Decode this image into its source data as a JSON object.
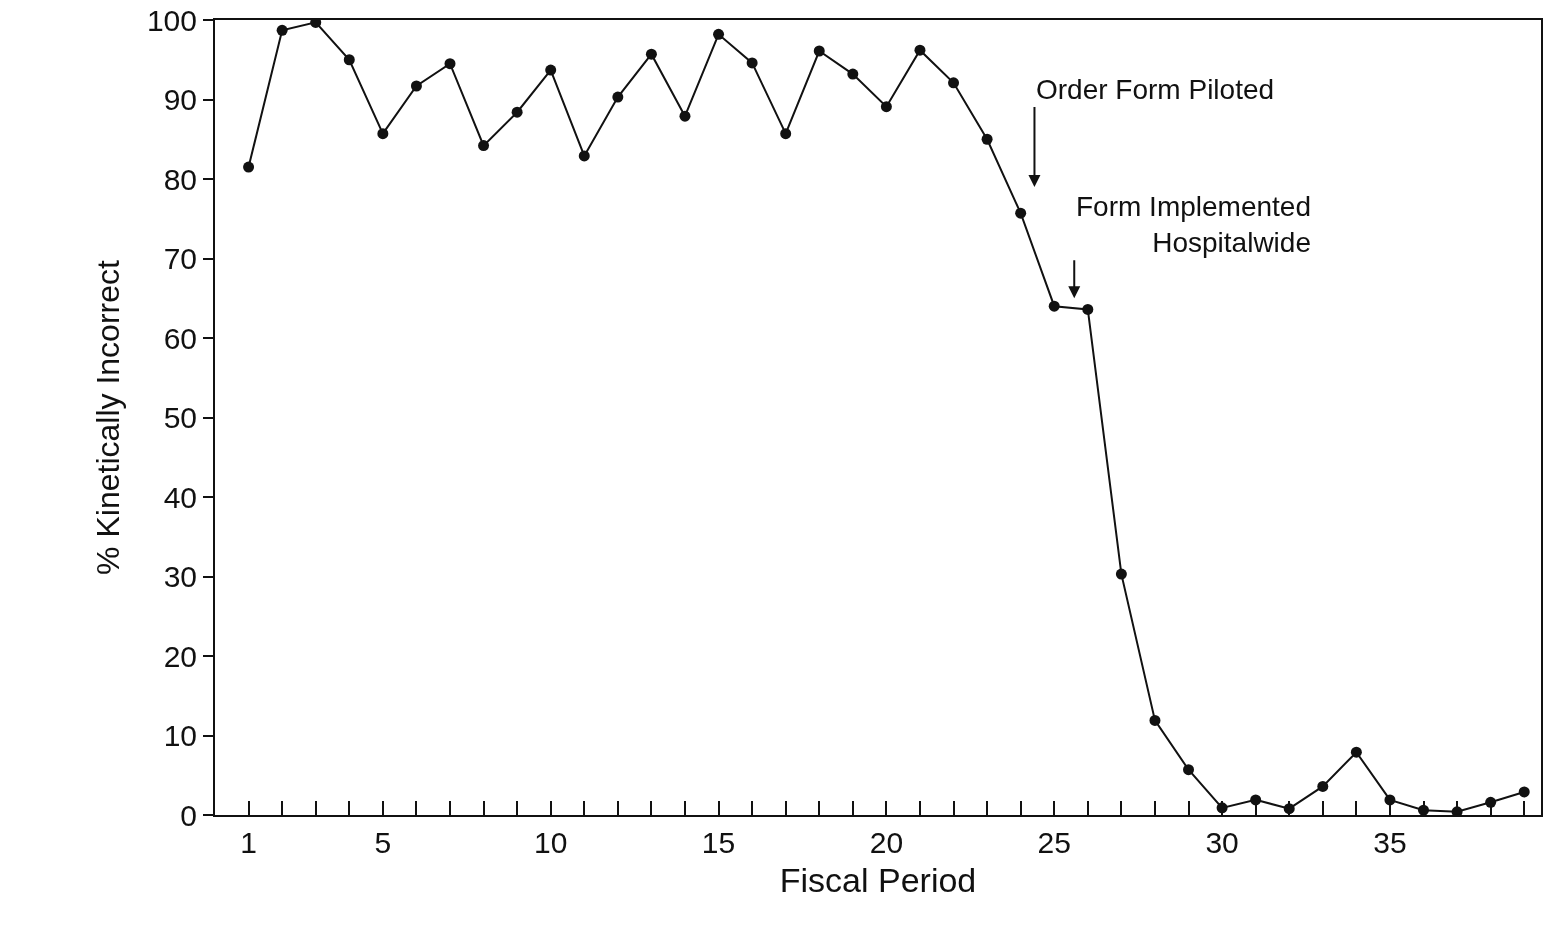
{
  "chart_data": {
    "type": "line",
    "xlabel": "Fiscal Period",
    "ylabel": "% Kinetically Incorrect",
    "x": [
      1,
      2,
      3,
      4,
      5,
      6,
      7,
      8,
      9,
      10,
      11,
      12,
      13,
      14,
      15,
      16,
      17,
      18,
      19,
      20,
      21,
      22,
      23,
      24,
      25,
      26,
      27,
      28,
      29,
      30,
      31,
      32,
      33,
      34,
      35,
      36,
      37,
      38,
      39
    ],
    "values": [
      81.5,
      98.7,
      99.7,
      95,
      85.7,
      91.7,
      94.5,
      84.2,
      88.4,
      93.7,
      82.9,
      90.3,
      95.7,
      87.9,
      98.2,
      94.6,
      85.7,
      96.1,
      93.2,
      89.1,
      96.2,
      92.1,
      85,
      75.7,
      64,
      63.6,
      30.3,
      11.9,
      5.7,
      0.9,
      1.9,
      0.8,
      3.6,
      7.9,
      1.9,
      0.6,
      0.4,
      1.6,
      2.9
    ],
    "color": "#111111",
    "marker": "circle",
    "line_style": "solid",
    "grid": false,
    "xlim": [
      0,
      39.5
    ],
    "ylim": [
      0,
      100
    ],
    "xticks": [
      1,
      {
        "value": 2,
        "label": null
      },
      {
        "value": 3,
        "label": null
      },
      {
        "value": 4,
        "label": null
      },
      5,
      {
        "value": 6,
        "label": null
      },
      {
        "value": 7,
        "label": null
      },
      {
        "value": 8,
        "label": null
      },
      {
        "value": 9,
        "label": null
      },
      10,
      {
        "value": 11,
        "label": null
      },
      {
        "value": 12,
        "label": null
      },
      {
        "value": 13,
        "label": null
      },
      {
        "value": 14,
        "label": null
      },
      15,
      {
        "value": 16,
        "label": null
      },
      {
        "value": 17,
        "label": null
      },
      {
        "value": 18,
        "label": null
      },
      {
        "value": 19,
        "label": null
      },
      20,
      {
        "value": 21,
        "label": null
      },
      {
        "value": 22,
        "label": null
      },
      {
        "value": 23,
        "label": null
      },
      {
        "value": 24,
        "label": null
      },
      25,
      {
        "value": 26,
        "label": null
      },
      {
        "value": 27,
        "label": null
      },
      {
        "value": 28,
        "label": null
      },
      {
        "value": 29,
        "label": null
      },
      30,
      {
        "value": 31,
        "label": null
      },
      {
        "value": 32,
        "label": null
      },
      {
        "value": 33,
        "label": null
      },
      {
        "value": 34,
        "label": null
      },
      35,
      {
        "value": 36,
        "label": null
      },
      {
        "value": 37,
        "label": null
      },
      {
        "value": 38,
        "label": null
      },
      {
        "value": 39,
        "label": null
      }
    ],
    "yticks": [
      0,
      10,
      20,
      30,
      40,
      50,
      60,
      70,
      80,
      90,
      100
    ],
    "annotations": [
      "Order Form Piloted",
      "Form Implemented\nHospitalwide"
    ]
  }
}
